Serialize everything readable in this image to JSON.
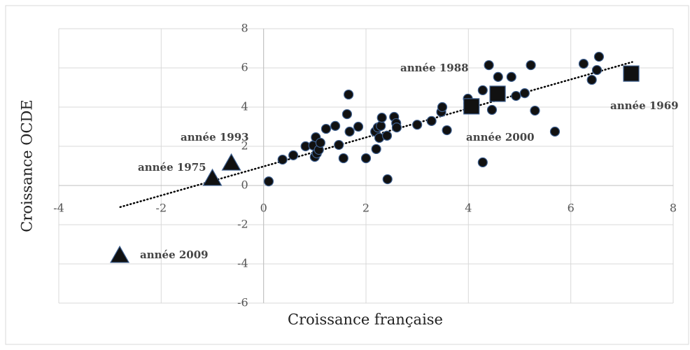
{
  "chart_data": {
    "type": "scatter",
    "x_label": "Croissance française",
    "y_label": "Croissance OCDE",
    "xlim": [
      -4,
      8
    ],
    "ylim": [
      -6,
      8
    ],
    "xticks": [
      -4,
      -2,
      0,
      2,
      4,
      6,
      8
    ],
    "yticks": [
      -6,
      -4,
      -2,
      0,
      2,
      4,
      6,
      8
    ],
    "grid": true,
    "series": [
      {
        "marker": "circle",
        "color": "#111111",
        "x": [
          0.1,
          0.37,
          0.58,
          0.82,
          0.97,
          1.02,
          1.0,
          1.04,
          1.08,
          1.11,
          1.22,
          1.4,
          1.47,
          1.56,
          1.63,
          1.66,
          1.68,
          1.85,
          2.0,
          2.18,
          2.2,
          2.23,
          2.26,
          2.29,
          2.31,
          2.41,
          2.42,
          2.55,
          2.59,
          2.6,
          3.0,
          3.28,
          3.47,
          3.49,
          3.58,
          3.99,
          4.0,
          4.28,
          4.28,
          4.4,
          4.46,
          4.58,
          4.84,
          4.93,
          5.1,
          5.22,
          5.3,
          5.69,
          6.25,
          6.41,
          6.51,
          6.55
        ],
        "values": [
          0.21,
          1.32,
          1.54,
          2.0,
          2.04,
          2.46,
          1.46,
          1.64,
          1.82,
          2.18,
          2.89,
          3.04,
          2.07,
          1.39,
          3.64,
          4.64,
          2.75,
          3.0,
          1.39,
          2.75,
          1.86,
          2.96,
          2.43,
          3.04,
          3.46,
          2.54,
          0.32,
          3.5,
          3.18,
          2.96,
          3.1,
          3.29,
          3.75,
          4.0,
          2.82,
          4.43,
          4.2,
          4.86,
          1.18,
          6.14,
          3.86,
          5.54,
          5.54,
          4.57,
          4.71,
          6.14,
          3.82,
          2.75,
          6.21,
          5.39,
          5.89,
          6.57
        ]
      },
      {
        "marker": "square",
        "color": "#111111",
        "x": [
          4.06,
          4.57,
          7.18
        ],
        "values": [
          4.04,
          4.68,
          5.71
        ]
      },
      {
        "marker": "triangle",
        "color": "#111111",
        "x": [
          -1.0,
          -0.63,
          -2.81
        ],
        "values": [
          0.36,
          1.14,
          -3.57
        ]
      }
    ],
    "trendline": {
      "x": [
        -2.8,
        7.2
      ],
      "values": [
        -1.1,
        6.3
      ]
    },
    "annotations": [
      "année 1988",
      "année 1969",
      "année 2000",
      "année 1993",
      "année 1975",
      "année 2009"
    ]
  }
}
